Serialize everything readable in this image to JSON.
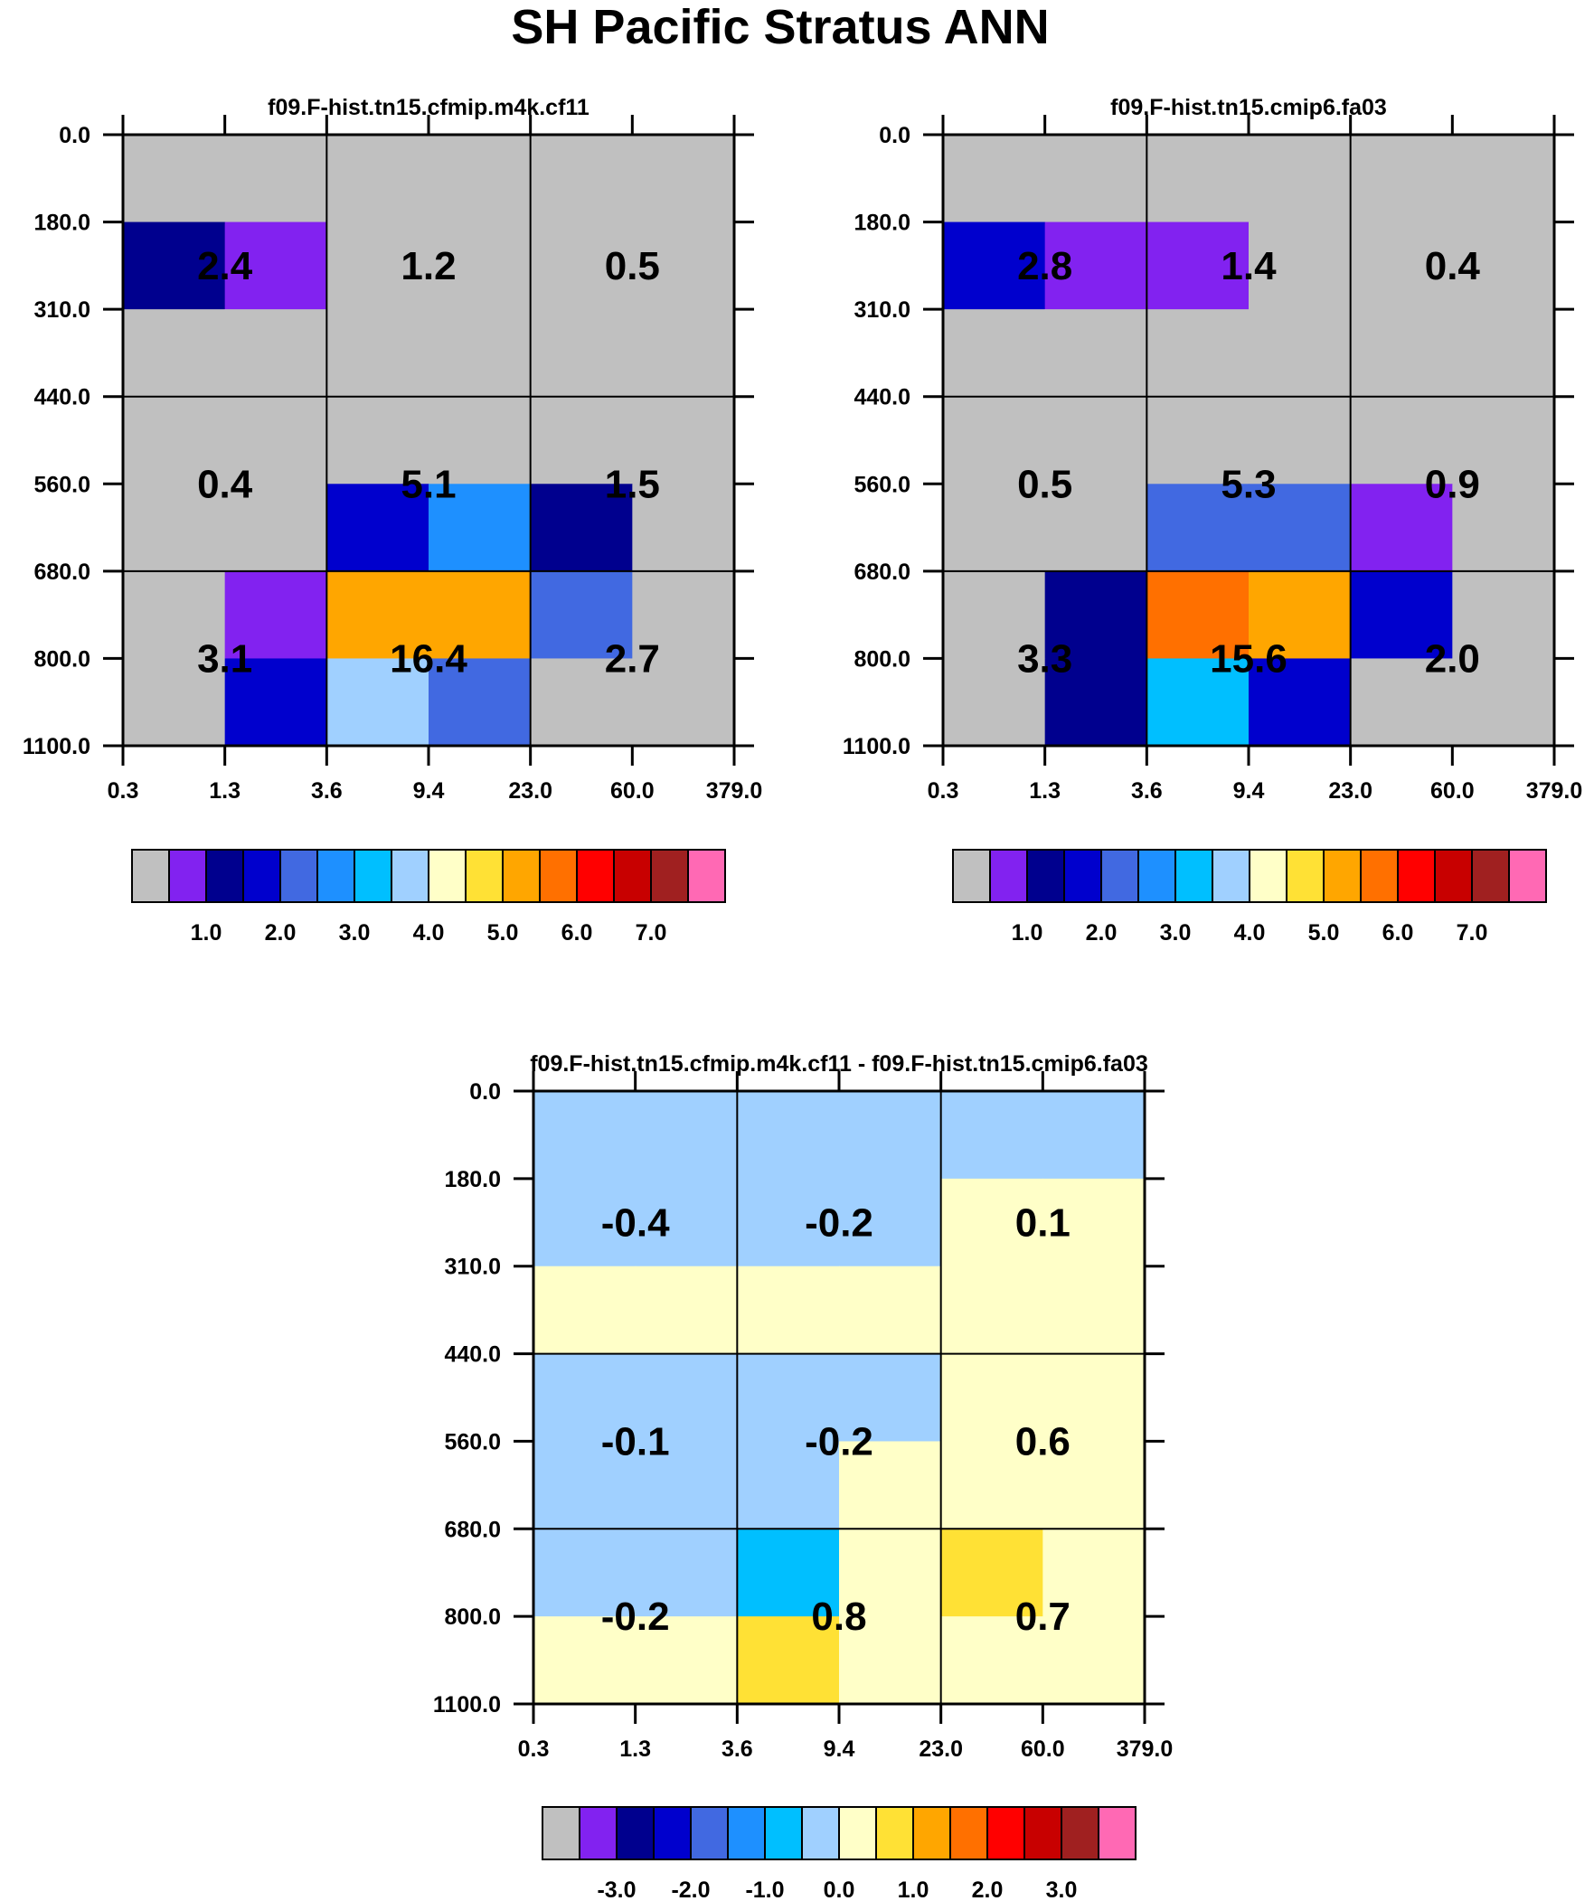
{
  "title": "SH Pacific Stratus ANN",
  "colors": {
    "bins": [
      "#c0c0c0",
      "#8222f0",
      "#00008e",
      "#0000cd",
      "#4169e1",
      "#1e90ff",
      "#00bfff",
      "#a0d0ff",
      "#ffffc8",
      "#ffe135",
      "#ffa600",
      "#ff7000",
      "#ff0000",
      "#c80000",
      "#a02020",
      "#ff69b4"
    ],
    "missing": "#c0c0c0"
  },
  "chart_data": [
    {
      "type": "heatmap",
      "title": "f09.F-hist.tn15.cfmip.m4k.cf11",
      "x_ticks": [
        "0.3",
        "1.3",
        "3.6",
        "9.4",
        "23.0",
        "60.0",
        "379.0"
      ],
      "y_ticks": [
        "0.0",
        "180.0",
        "310.0",
        "440.0",
        "560.0",
        "680.0",
        "800.0",
        "1100.0"
      ],
      "cells": [
        [
          0,
          0,
          0,
          0,
          0,
          0
        ],
        [
          2,
          1,
          0,
          0,
          0,
          0
        ],
        [
          0,
          0,
          0,
          0,
          0,
          0
        ],
        [
          0,
          0,
          0,
          0,
          0,
          0
        ],
        [
          0,
          0,
          3,
          5,
          2,
          0
        ],
        [
          0,
          1,
          10,
          10,
          4,
          0
        ],
        [
          0,
          3,
          7,
          4,
          0,
          0
        ]
      ],
      "box_values": [
        [
          "2.4",
          "1.2",
          "0.5"
        ],
        [
          "0.4",
          "5.1",
          "1.5"
        ],
        [
          "3.1",
          "16.4",
          "2.7"
        ]
      ],
      "colorbar_labels": [
        "1.0",
        "2.0",
        "3.0",
        "4.0",
        "5.0",
        "6.0",
        "7.0"
      ],
      "colorbar_label_start": 2
    },
    {
      "type": "heatmap",
      "title": "f09.F-hist.tn15.cmip6.fa03",
      "x_ticks": [
        "0.3",
        "1.3",
        "3.6",
        "9.4",
        "23.0",
        "60.0",
        "379.0"
      ],
      "y_ticks": [
        "0.0",
        "180.0",
        "310.0",
        "440.0",
        "560.0",
        "680.0",
        "800.0",
        "1100.0"
      ],
      "cells": [
        [
          0,
          0,
          0,
          0,
          0,
          0
        ],
        [
          3,
          1,
          1,
          0,
          0,
          0
        ],
        [
          0,
          0,
          0,
          0,
          0,
          0
        ],
        [
          0,
          0,
          0,
          0,
          0,
          0
        ],
        [
          0,
          0,
          4,
          4,
          1,
          0
        ],
        [
          0,
          2,
          11,
          10,
          3,
          0
        ],
        [
          0,
          2,
          6,
          3,
          0,
          0
        ]
      ],
      "box_values": [
        [
          "2.8",
          "1.4",
          "0.4"
        ],
        [
          "0.5",
          "5.3",
          "0.9"
        ],
        [
          "3.3",
          "15.6",
          "2.0"
        ]
      ],
      "colorbar_labels": [
        "1.0",
        "2.0",
        "3.0",
        "4.0",
        "5.0",
        "6.0",
        "7.0"
      ],
      "colorbar_label_start": 2
    },
    {
      "type": "heatmap",
      "title": "f09.F-hist.tn15.cfmip.m4k.cf11 - f09.F-hist.tn15.cmip6.fa03",
      "x_ticks": [
        "0.3",
        "1.3",
        "3.6",
        "9.4",
        "23.0",
        "60.0",
        "379.0"
      ],
      "y_ticks": [
        "0.0",
        "180.0",
        "310.0",
        "440.0",
        "560.0",
        "680.0",
        "800.0",
        "1100.0"
      ],
      "cells": [
        [
          7,
          7,
          7,
          7,
          7,
          7
        ],
        [
          7,
          7,
          7,
          7,
          8,
          8
        ],
        [
          8,
          8,
          8,
          8,
          8,
          8
        ],
        [
          7,
          7,
          7,
          7,
          8,
          8
        ],
        [
          7,
          7,
          7,
          8,
          8,
          8
        ],
        [
          7,
          7,
          6,
          8,
          9,
          8
        ],
        [
          8,
          8,
          9,
          8,
          8,
          8
        ]
      ],
      "box_values": [
        [
          "-0.4",
          "-0.2",
          "0.1"
        ],
        [
          "-0.1",
          "-0.2",
          "0.6"
        ],
        [
          "-0.2",
          "0.8",
          "0.7"
        ]
      ],
      "colorbar_labels": [
        "-3.0",
        "-2.0",
        "-1.0",
        "0.0",
        "1.0",
        "2.0",
        "3.0"
      ],
      "colorbar_label_start": 2
    }
  ]
}
